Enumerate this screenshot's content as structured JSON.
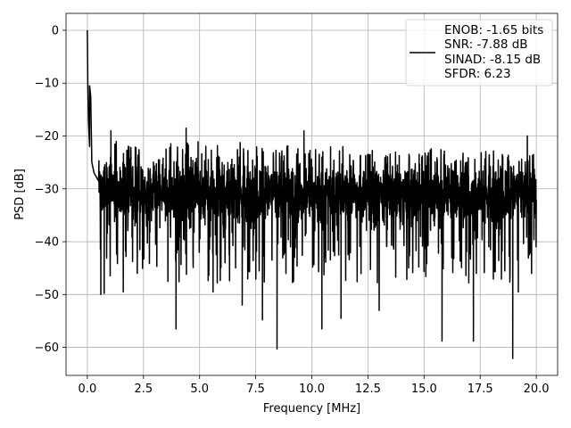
{
  "chart_data": {
    "type": "line",
    "title": "",
    "xlabel": "Frequency [MHz]",
    "ylabel": "PSD [dB]",
    "xlim": [
      -0.95,
      20.95
    ],
    "ylim": [
      -65.3,
      3.2
    ],
    "grid": true,
    "xticks": [
      0.0,
      2.5,
      5.0,
      7.5,
      10.0,
      12.5,
      15.0,
      17.5,
      20.0
    ],
    "xtick_labels": [
      "0.0",
      "2.5",
      "5.0",
      "7.5",
      "10.0",
      "12.5",
      "15.0",
      "17.5",
      "20.0"
    ],
    "yticks": [
      0,
      -10,
      -20,
      -30,
      -40,
      -50,
      -60
    ],
    "ytick_labels": [
      "0",
      "−10",
      "−20",
      "−30",
      "−40",
      "−50",
      "−60"
    ],
    "legend": {
      "placement": "upper right",
      "entries": [
        "ENOB: -1.65 bits",
        "SNR: -7.88 dB",
        "SINAD: -8.15 dB",
        "SFDR: 6.23"
      ]
    },
    "series": [
      {
        "color": "#000000",
        "x_range": [
          0,
          20
        ],
        "peak": {
          "x": 0.0,
          "y": 0.0
        },
        "decay_points": [
          [
            0.0,
            0.0
          ],
          [
            0.02,
            -10.0
          ],
          [
            0.05,
            -17.0
          ],
          [
            0.1,
            -22.0
          ],
          [
            0.2,
            -25.0
          ],
          [
            0.3,
            -27.0
          ],
          [
            0.5,
            -28.5
          ]
        ],
        "upper_envelope_approx": [
          -20,
          -23
        ],
        "floor_mean_approx": -31,
        "notable_dips": [
          {
            "x": 0.6,
            "y": -50.0
          },
          {
            "x": 0.75,
            "y": -49.8
          },
          {
            "x": 1.6,
            "y": -49.5
          },
          {
            "x": 3.95,
            "y": -56.5
          },
          {
            "x": 5.6,
            "y": -49.5
          },
          {
            "x": 6.9,
            "y": -52.0
          },
          {
            "x": 7.8,
            "y": -54.8
          },
          {
            "x": 8.45,
            "y": -60.3
          },
          {
            "x": 10.45,
            "y": -56.5
          },
          {
            "x": 11.3,
            "y": -54.5
          },
          {
            "x": 13.0,
            "y": -53.0
          },
          {
            "x": 15.8,
            "y": -58.8
          },
          {
            "x": 17.2,
            "y": -58.8
          },
          {
            "x": 18.95,
            "y": -62.1
          },
          {
            "x": 19.2,
            "y": -49.5
          }
        ],
        "notable_peaks": [
          {
            "x": 0.1,
            "y": -10.5
          },
          {
            "x": 0.15,
            "y": -12.5
          },
          {
            "x": 1.05,
            "y": -19.0
          },
          {
            "x": 4.4,
            "y": -18.5
          },
          {
            "x": 9.65,
            "y": -19.0
          },
          {
            "x": 19.6,
            "y": -20.0
          }
        ]
      }
    ]
  }
}
